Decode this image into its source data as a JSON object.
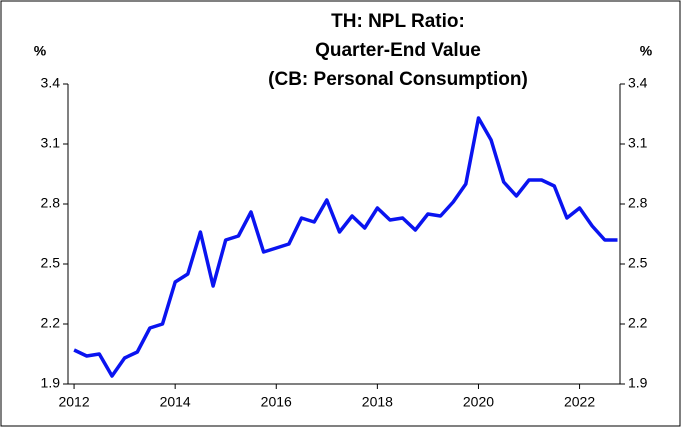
{
  "chart_data": {
    "type": "line",
    "title": [
      "TH: NPL Ratio:",
      "Quarter-End Value",
      "(CB: Personal Consumption)"
    ],
    "y_label": "%",
    "y2_label": "%",
    "x": [
      2012,
      2012.25,
      2012.5,
      2012.75,
      2013,
      2013.25,
      2013.5,
      2013.75,
      2014,
      2014.25,
      2014.5,
      2014.75,
      2015,
      2015.25,
      2015.5,
      2015.75,
      2016,
      2016.25,
      2016.5,
      2016.75,
      2017,
      2017.25,
      2017.5,
      2017.75,
      2018,
      2018.25,
      2018.5,
      2018.75,
      2019,
      2019.25,
      2019.5,
      2019.75,
      2020,
      2020.25,
      2020.5,
      2020.75,
      2021,
      2021.25,
      2021.5,
      2021.75,
      2022,
      2022.25,
      2022.5,
      2022.75
    ],
    "series": [
      {
        "color": "#0a14f0",
        "values": [
          2.07,
          2.04,
          2.05,
          1.94,
          2.03,
          2.06,
          2.18,
          2.2,
          2.41,
          2.45,
          2.66,
          2.39,
          2.62,
          2.64,
          2.76,
          2.56,
          2.58,
          2.6,
          2.73,
          2.71,
          2.82,
          2.66,
          2.74,
          2.68,
          2.78,
          2.72,
          2.73,
          2.67,
          2.75,
          2.74,
          2.81,
          2.9,
          3.23,
          3.12,
          2.91,
          2.84,
          2.92,
          2.92,
          2.89,
          2.73,
          2.78,
          2.69,
          2.62,
          2.62
        ]
      }
    ],
    "xlim": [
      2011.88,
      2022.8
    ],
    "xticks": [
      2012,
      2014,
      2016,
      2018,
      2020,
      2022
    ],
    "ylim": [
      1.9,
      3.4
    ],
    "yticks": [
      1.9,
      2.2,
      2.5,
      2.8,
      3.1,
      3.4
    ],
    "y2lim": [
      1.9,
      3.4
    ],
    "y2ticks": [
      1.9,
      2.2,
      2.5,
      2.8,
      3.1,
      3.4
    ]
  }
}
